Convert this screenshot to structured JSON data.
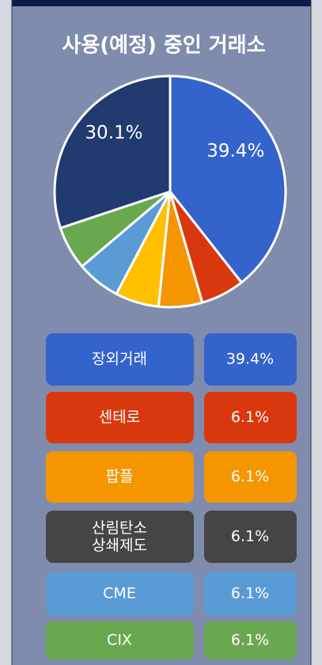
{
  "chart_data": {
    "type": "pie",
    "title": "사용(예정) 중인 거래소",
    "categories": [
      "장외거래",
      "센테로",
      "팝플",
      null,
      "CME",
      "CIX",
      null
    ],
    "values": [
      39.4,
      6.1,
      6.1,
      6.1,
      6.1,
      6.1,
      30.1
    ],
    "value_labels": [
      "39.4%",
      null,
      null,
      null,
      null,
      null,
      "30.1%"
    ],
    "colors": [
      "#3563cc",
      "#d9380f",
      "#f59500",
      "#ffc000",
      "#5b9bd5",
      "#6aa84f",
      "#213a70"
    ]
  },
  "legend_table": {
    "rows": [
      {
        "label": "장외거래",
        "value": "39.4%",
        "color": "#3563cc"
      },
      {
        "label": "센테로",
        "value": "6.1%",
        "color": "#d9380f"
      },
      {
        "label": "팝플",
        "value": "6.1%",
        "color": "#f59500"
      },
      {
        "label": "산림탄소\n상쇄제도",
        "value": "6.1%",
        "color": "#454545"
      },
      {
        "label": "CME",
        "value": "6.1%",
        "color": "#5b9bd5"
      },
      {
        "label": "CIX",
        "value": "6.1%",
        "color": "#6aa84f"
      }
    ]
  }
}
